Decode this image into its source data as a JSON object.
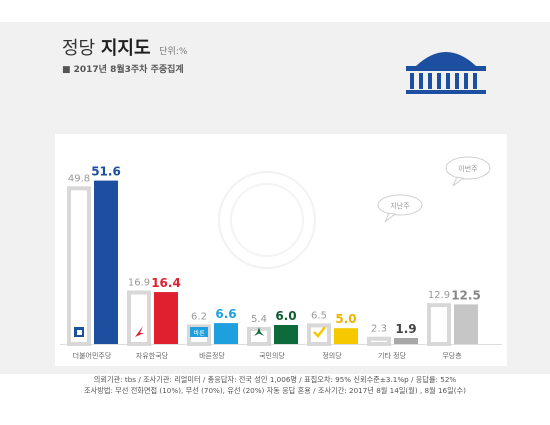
{
  "header": {
    "title_light": "정당",
    "title_bold": "지지도",
    "unit": "단위:%",
    "subtitle": "■ 2017년 8월3주차 주중집계"
  },
  "footer": {
    "line1": "의뢰기관: tbs / 조사기관: 리얼미터 / 총응답자: 전국 성인 1,006명 / 표집오차: 95% 신뢰수준±3.1%p / 응답률: 52%",
    "line2": "조사방법: 무선 전화면접 (10%), 무선 (70%), 유선 (20%) 자동 응답 혼용 / 조사기간: 2017년 8월 14일(월) , 8월 16일(수)"
  },
  "callouts": {
    "last_week": "지난주",
    "this_week": "이번주"
  },
  "chart_data": {
    "type": "bar",
    "categories": [
      "더불어민주당",
      "자유한국당",
      "바른정당",
      "국민의당",
      "정의당",
      "기타 정당",
      "무당층"
    ],
    "series": [
      {
        "name": "지난주",
        "values": [
          49.8,
          16.9,
          6.2,
          5.4,
          6.5,
          2.3,
          12.9
        ]
      },
      {
        "name": "이번주",
        "values": [
          51.6,
          16.4,
          6.6,
          6.0,
          5.0,
          1.9,
          12.5
        ]
      }
    ],
    "colors": {
      "current": [
        "#1d4fa0",
        "#e01f2f",
        "#1ea0de",
        "#0d6a3a",
        "#f5c800",
        "#a7a7a7",
        "#c6c6c6"
      ],
      "label": [
        "#1d4fa0",
        "#e01f2f",
        "#1ea0de",
        "#0d5a30",
        "#f0b400",
        "#444444",
        "#888888"
      ],
      "previous_outline": "#d8d8d8",
      "previous_label": "#9a9a9a"
    },
    "party_icons": [
      "minjoo-logo-icon",
      "korea-party-logo-icon",
      "bareun-logo-icon",
      "peoples-party-logo-icon",
      "justice-party-logo-icon",
      "",
      ""
    ],
    "badge_text": [
      "",
      "",
      "바른",
      "",
      "",
      "",
      ""
    ],
    "ylim": [
      0,
      60
    ]
  }
}
